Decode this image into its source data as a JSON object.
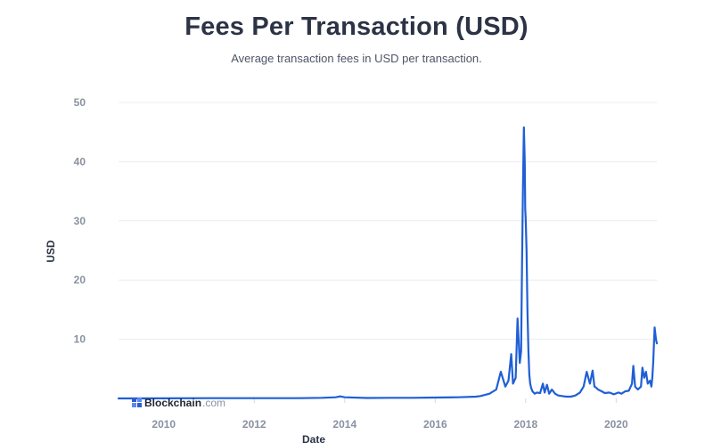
{
  "header": {
    "title": "Fees Per Transaction (USD)",
    "subtitle": "Average transaction fees in USD per transaction."
  },
  "watermark": {
    "brand": "Blockchain",
    "suffix": ".com"
  },
  "colors": {
    "line": "#1f5fd6",
    "grid": "#e9ecf0",
    "tick_text": "#8a91a0",
    "title_text": "#2c3345"
  },
  "chart_data": {
    "type": "line",
    "title": "Fees Per Transaction (USD)",
    "subtitle": "Average transaction fees in USD per transaction.",
    "xlabel": "Date",
    "ylabel": "USD",
    "xlim": [
      2009.0,
      2020.9
    ],
    "ylim": [
      0,
      50
    ],
    "x_ticks": [
      2010,
      2012,
      2014,
      2016,
      2018,
      2020
    ],
    "x_tick_labels": [
      "2010",
      "2012",
      "2014",
      "2016",
      "2018",
      "2020"
    ],
    "y_ticks": [
      10,
      20,
      30,
      40,
      50
    ],
    "y_tick_labels": [
      "10",
      "20",
      "30",
      "40",
      "50"
    ],
    "grid": true,
    "legend": "none",
    "series": [
      {
        "x": [
          2009.0,
          2010.0,
          2011.0,
          2012.0,
          2013.0,
          2013.5,
          2013.8,
          2013.9,
          2014.0,
          2014.5,
          2015.0,
          2015.5,
          2016.0,
          2016.5,
          2016.9,
          2017.0,
          2017.2,
          2017.35,
          2017.45,
          2017.55,
          2017.62,
          2017.68,
          2017.72,
          2017.78,
          2017.82,
          2017.87,
          2017.9,
          2017.92,
          2017.94,
          2017.96,
          2017.98,
          2017.99,
          2018.0,
          2018.02,
          2018.04,
          2018.06,
          2018.08,
          2018.1,
          2018.12,
          2018.15,
          2018.2,
          2018.25,
          2018.32,
          2018.38,
          2018.42,
          2018.47,
          2018.52,
          2018.58,
          2018.65,
          2018.72,
          2018.8,
          2018.9,
          2019.0,
          2019.1,
          2019.2,
          2019.28,
          2019.35,
          2019.42,
          2019.48,
          2019.52,
          2019.56,
          2019.6,
          2019.68,
          2019.75,
          2019.85,
          2019.95,
          2020.05,
          2020.12,
          2020.2,
          2020.28,
          2020.35,
          2020.38,
          2020.42,
          2020.48,
          2020.55,
          2020.58,
          2020.62,
          2020.66,
          2020.7,
          2020.75,
          2020.78,
          2020.8,
          2020.82,
          2020.85,
          2020.88,
          2020.9
        ],
        "y": [
          0,
          0.02,
          0.05,
          0.04,
          0.05,
          0.1,
          0.2,
          0.35,
          0.2,
          0.08,
          0.1,
          0.1,
          0.15,
          0.2,
          0.3,
          0.4,
          0.8,
          1.5,
          4.5,
          2.0,
          3.0,
          7.5,
          2.5,
          3.5,
          13.5,
          6.0,
          8.0,
          22.0,
          36.0,
          45.8,
          40.0,
          32.0,
          30.5,
          25.0,
          15.0,
          8.0,
          4.0,
          2.5,
          1.8,
          1.2,
          0.8,
          1.0,
          0.9,
          2.5,
          1.0,
          2.3,
          0.8,
          1.5,
          0.8,
          0.5,
          0.4,
          0.3,
          0.3,
          0.5,
          1.0,
          2.0,
          4.5,
          2.5,
          4.7,
          2.0,
          1.8,
          1.5,
          1.2,
          0.9,
          1.0,
          0.7,
          1.0,
          0.8,
          1.2,
          1.3,
          2.5,
          5.5,
          2.0,
          1.5,
          2.0,
          5.2,
          3.5,
          4.5,
          2.5,
          3.0,
          2.0,
          3.5,
          6.0,
          12.0,
          10.0,
          9.3
        ]
      }
    ]
  }
}
